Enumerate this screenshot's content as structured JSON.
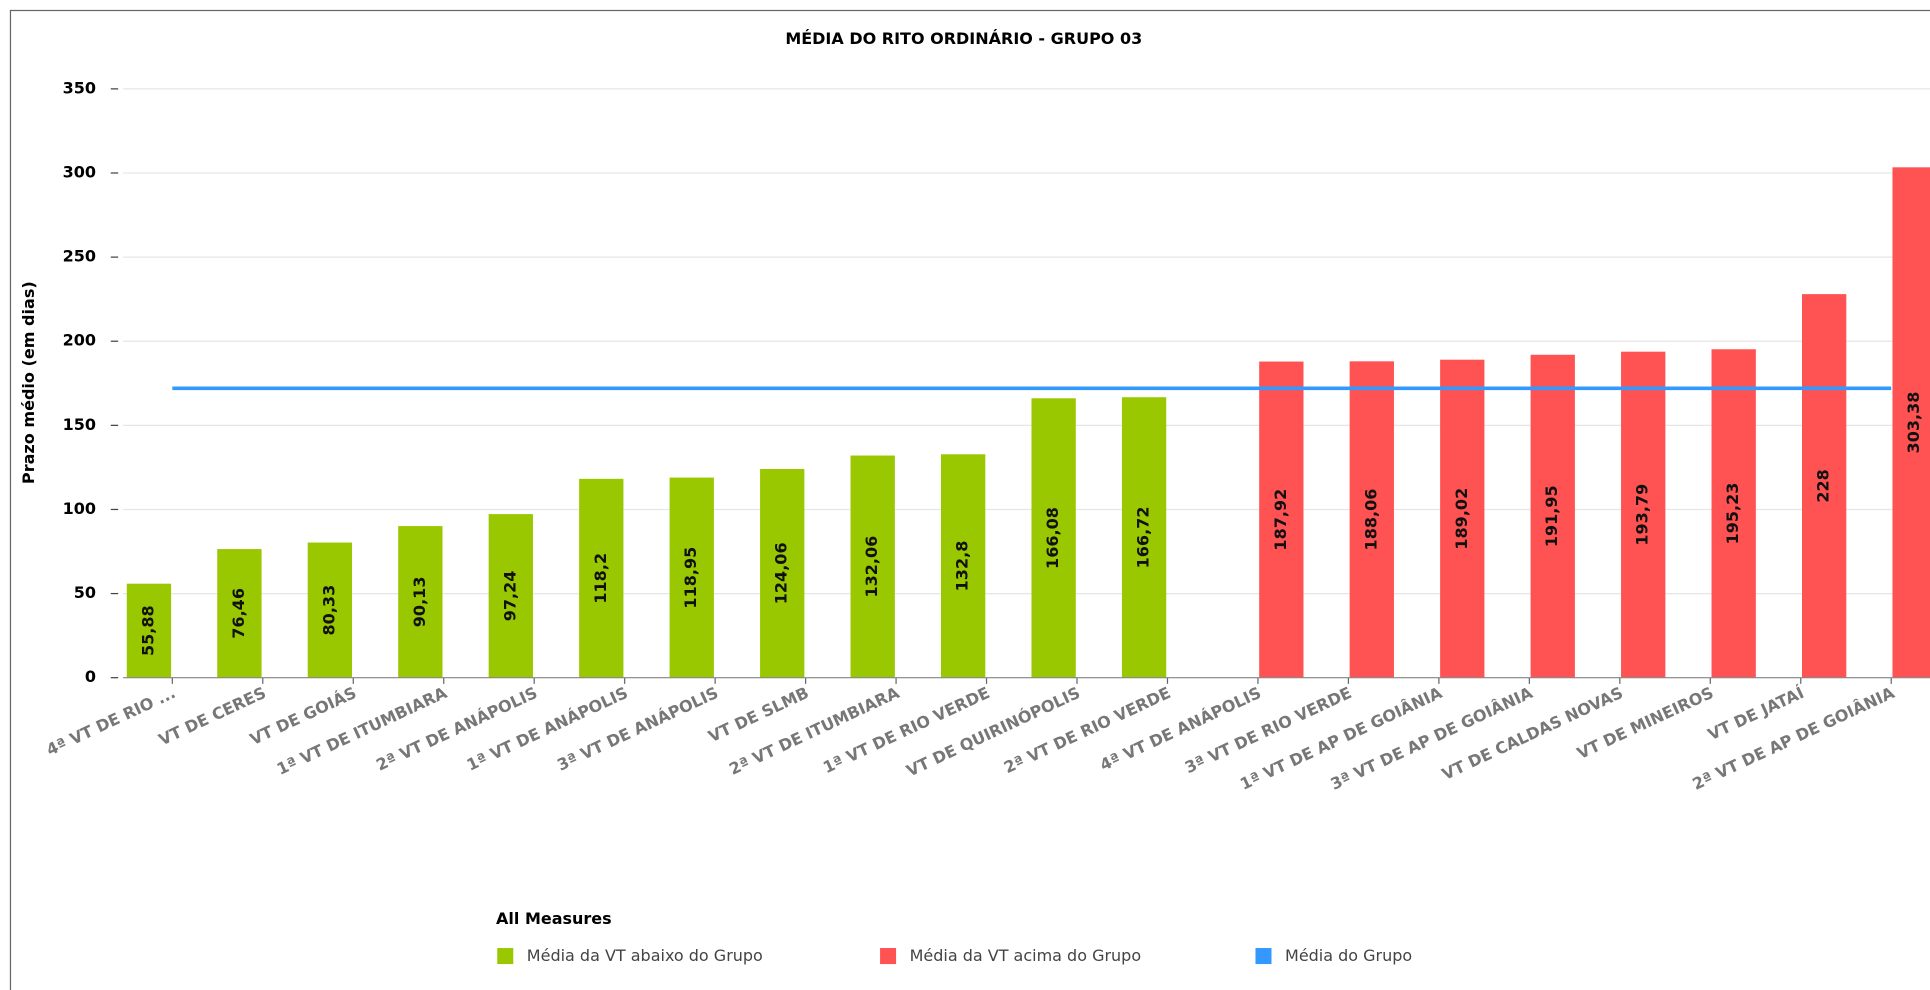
{
  "chart_data": {
    "type": "bar",
    "title": "MÉDIA DO RITO ORDINÁRIO - GRUPO 03",
    "y_label": "Prazo médio (em dias)",
    "legend_title": "All Measures",
    "legend": "bottom",
    "grid": true,
    "categories": [
      "4ª VT DE RIO ...",
      "VT DE CERES",
      "VT DE GOIÁS",
      "1ª VT DE ITUMBIARA",
      "2ª VT DE ANÁPOLIS",
      "1ª VT DE ANÁPOLIS",
      "3ª VT DE ANÁPOLIS",
      "VT DE SLMB",
      "2ª VT DE ITUMBIARA",
      "1ª VT DE RIO VERDE",
      "VT DE QUIRINÓPOLIS",
      "2ª VT DE RIO VERDE",
      "4ª VT DE ANÁPOLIS",
      "3ª VT DE RIO VERDE",
      "1ª VT DE AP DE GOIÂNIA",
      "3ª VT DE AP DE GOIÂNIA",
      "VT DE CALDAS NOVAS",
      "VT DE MINEIROS",
      "VT DE JATAÍ",
      "2ª VT DE AP DE GOIÂNIA"
    ],
    "series": [
      {
        "name": "Média da VT abaixo do Grupo",
        "color": "#99c800",
        "type": "bar",
        "values": [
          55.88,
          76.46,
          80.33,
          90.13,
          97.24,
          118.2,
          118.95,
          124.06,
          132.06,
          132.8,
          166.08,
          166.72,
          null,
          null,
          null,
          null,
          null,
          null,
          null,
          null
        ],
        "value_labels": [
          "55,88",
          "76,46",
          "80,33",
          "90,13",
          "97,24",
          "118,2",
          "118,95",
          "124,06",
          "132,06",
          "132,8",
          "166,08",
          "166,72",
          null,
          null,
          null,
          null,
          null,
          null,
          null,
          null
        ]
      },
      {
        "name": "Média da VT acima do Grupo",
        "color": "#ff5252",
        "type": "bar",
        "values": [
          null,
          null,
          null,
          null,
          null,
          null,
          null,
          null,
          null,
          null,
          null,
          null,
          187.92,
          188.06,
          189.02,
          191.95,
          193.79,
          195.23,
          228,
          303.38
        ],
        "value_labels": [
          null,
          null,
          null,
          null,
          null,
          null,
          null,
          null,
          null,
          null,
          null,
          null,
          "187,92",
          "188,06",
          "189,02",
          "191,95",
          "193,79",
          "195,23",
          "228",
          "303,38"
        ]
      },
      {
        "name": "Média do Grupo",
        "color": "#3399ff",
        "type": "line",
        "values": [
          172,
          172,
          172,
          172,
          172,
          172,
          172,
          172,
          172,
          172,
          172,
          172,
          172,
          172,
          172,
          172,
          172,
          172,
          172,
          172
        ]
      }
    ],
    "ylim": [
      0,
      350
    ],
    "yticks": [
      0,
      50,
      100,
      150,
      200,
      250,
      300,
      350
    ]
  }
}
